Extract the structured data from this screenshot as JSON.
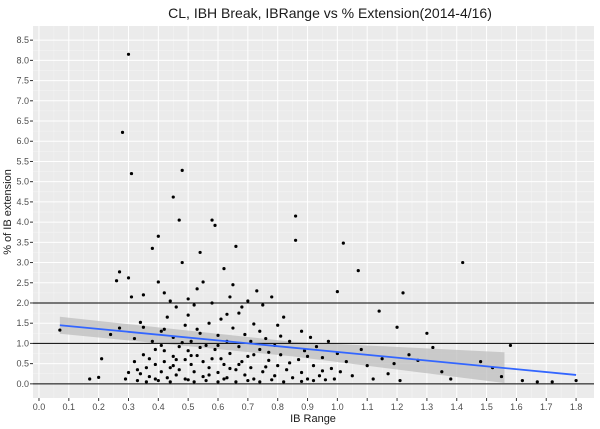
{
  "chart_data": {
    "type": "scatter",
    "title": "CL, IBH Break, IBRange vs % Extension(2014-4/16)",
    "xlabel": "IB Range",
    "ylabel": "% of IB extension",
    "xlim": [
      -0.02,
      1.86
    ],
    "ylim": [
      -0.35,
      8.85
    ],
    "x_ticks": [
      "0.0",
      "0.1",
      "0.2",
      "0.3",
      "0.4",
      "0.5",
      "0.6",
      "0.7",
      "0.8",
      "0.9",
      "1.0",
      "1.1",
      "1.2",
      "1.3",
      "1.4",
      "1.5",
      "1.6",
      "1.7",
      "1.8"
    ],
    "y_ticks": [
      "0.0",
      "0.5",
      "1.0",
      "1.5",
      "2.0",
      "2.5",
      "3.0",
      "3.5",
      "4.0",
      "4.5",
      "5.0",
      "5.5",
      "6.0",
      "6.5",
      "7.0",
      "7.5",
      "8.0",
      "8.5"
    ],
    "reference_lines": [
      0,
      1,
      2
    ],
    "grid": true,
    "background": "#ebebeb",
    "point_color": "#000000",
    "trend_color": "#3366ff",
    "ribbon_color": "#bdbdbd",
    "trend": {
      "x": [
        0.07,
        1.8
      ],
      "y": [
        1.45,
        0.22
      ],
      "ribbon_upper": [
        1.66,
        1.04,
        0.78
      ],
      "ribbon_lower": [
        1.24,
        0.68,
        0.02
      ],
      "ribbon_x": [
        0.07,
        0.85,
        1.56
      ]
    },
    "points": [
      [
        0.07,
        1.33
      ],
      [
        0.17,
        0.12
      ],
      [
        0.2,
        0.16
      ],
      [
        0.21,
        0.62
      ],
      [
        0.24,
        1.22
      ],
      [
        0.26,
        2.55
      ],
      [
        0.27,
        2.77
      ],
      [
        0.28,
        6.22
      ],
      [
        0.27,
        1.38
      ],
      [
        0.29,
        0.12
      ],
      [
        0.3,
        8.15
      ],
      [
        0.31,
        5.2
      ],
      [
        0.3,
        2.62
      ],
      [
        0.31,
        2.15
      ],
      [
        0.3,
        0.28
      ],
      [
        0.32,
        1.12
      ],
      [
        0.32,
        0.55
      ],
      [
        0.33,
        0.35
      ],
      [
        0.34,
        1.52
      ],
      [
        0.34,
        0.25
      ],
      [
        0.35,
        2.2
      ],
      [
        0.35,
        1.4
      ],
      [
        0.35,
        0.72
      ],
      [
        0.36,
        0.4
      ],
      [
        0.37,
        0.62
      ],
      [
        0.37,
        0.18
      ],
      [
        0.38,
        3.35
      ],
      [
        0.38,
        1.05
      ],
      [
        0.39,
        0.48
      ],
      [
        0.39,
        0.12
      ],
      [
        0.4,
        3.65
      ],
      [
        0.4,
        2.52
      ],
      [
        0.41,
        1.3
      ],
      [
        0.41,
        0.95
      ],
      [
        0.41,
        0.3
      ],
      [
        0.42,
        2.25
      ],
      [
        0.42,
        0.82
      ],
      [
        0.42,
        0.55
      ],
      [
        0.43,
        0.15
      ],
      [
        0.43,
        1.65
      ],
      [
        0.44,
        0.4
      ],
      [
        0.44,
        2.05
      ],
      [
        0.45,
        4.62
      ],
      [
        0.45,
        1.15
      ],
      [
        0.45,
        0.68
      ],
      [
        0.46,
        0.22
      ],
      [
        0.46,
        1.9
      ],
      [
        0.47,
        4.05
      ],
      [
        0.47,
        0.92
      ],
      [
        0.47,
        0.35
      ],
      [
        0.48,
        5.28
      ],
      [
        0.48,
        3.0
      ],
      [
        0.49,
        1.45
      ],
      [
        0.49,
        0.6
      ],
      [
        0.49,
        0.12
      ],
      [
        0.5,
        1.7
      ],
      [
        0.5,
        2.1
      ],
      [
        0.5,
        0.82
      ],
      [
        0.51,
        0.48
      ],
      [
        0.51,
        1.05
      ],
      [
        0.52,
        1.95
      ],
      [
        0.52,
        0.3
      ],
      [
        0.53,
        0.7
      ],
      [
        0.53,
        2.35
      ],
      [
        0.54,
        3.25
      ],
      [
        0.54,
        1.25
      ],
      [
        0.55,
        0.55
      ],
      [
        0.55,
        2.52
      ],
      [
        0.55,
        0.18
      ],
      [
        0.56,
        0.95
      ],
      [
        0.57,
        1.5
      ],
      [
        0.57,
        0.4
      ],
      [
        0.58,
        4.05
      ],
      [
        0.58,
        2.0
      ],
      [
        0.59,
        3.92
      ],
      [
        0.59,
        0.85
      ],
      [
        0.6,
        1.2
      ],
      [
        0.6,
        0.28
      ],
      [
        0.61,
        0.62
      ],
      [
        0.61,
        1.6
      ],
      [
        0.62,
        2.85
      ],
      [
        0.62,
        0.48
      ],
      [
        0.63,
        1.05
      ],
      [
        0.63,
        0.15
      ],
      [
        0.64,
        2.15
      ],
      [
        0.64,
        0.75
      ],
      [
        0.65,
        1.38
      ],
      [
        0.65,
        2.45
      ],
      [
        0.66,
        0.35
      ],
      [
        0.66,
        3.4
      ],
      [
        0.67,
        0.92
      ],
      [
        0.67,
        1.75
      ],
      [
        0.68,
        0.55
      ],
      [
        0.69,
        0.22
      ],
      [
        0.69,
        1.22
      ],
      [
        0.7,
        2.05
      ],
      [
        0.7,
        0.68
      ],
      [
        0.71,
        0.4
      ],
      [
        0.72,
        1.48
      ],
      [
        0.72,
        0.12
      ],
      [
        0.73,
        2.3
      ],
      [
        0.74,
        0.85
      ],
      [
        0.75,
        1.95
      ],
      [
        0.75,
        0.3
      ],
      [
        0.76,
        1.12
      ],
      [
        0.77,
        0.58
      ],
      [
        0.78,
        2.15
      ],
      [
        0.79,
        0.95
      ],
      [
        0.79,
        0.2
      ],
      [
        0.8,
        1.45
      ],
      [
        0.8,
        0.45
      ],
      [
        0.81,
        0.72
      ],
      [
        0.82,
        1.65
      ],
      [
        0.83,
        0.35
      ],
      [
        0.84,
        1.05
      ],
      [
        0.85,
        0.15
      ],
      [
        0.86,
        4.15
      ],
      [
        0.86,
        3.55
      ],
      [
        0.87,
        0.6
      ],
      [
        0.88,
        1.3
      ],
      [
        0.88,
        0.28
      ],
      [
        0.89,
        0.82
      ],
      [
        0.9,
        0.12
      ],
      [
        0.91,
        1.15
      ],
      [
        0.92,
        0.45
      ],
      [
        0.93,
        0.92
      ],
      [
        0.94,
        0.2
      ],
      [
        0.95,
        0.65
      ],
      [
        0.96,
        0.1
      ],
      [
        0.97,
        1.05
      ],
      [
        0.98,
        0.38
      ],
      [
        0.99,
        0.12
      ],
      [
        1.0,
        2.28
      ],
      [
        1.0,
        0.75
      ],
      [
        1.01,
        0.3
      ],
      [
        1.02,
        3.48
      ],
      [
        1.03,
        0.55
      ],
      [
        1.05,
        0.2
      ],
      [
        1.07,
        2.8
      ],
      [
        1.08,
        0.85
      ],
      [
        1.1,
        0.45
      ],
      [
        1.12,
        0.12
      ],
      [
        1.14,
        1.8
      ],
      [
        1.15,
        0.62
      ],
      [
        1.17,
        0.25
      ],
      [
        1.19,
        0.5
      ],
      [
        1.2,
        1.4
      ],
      [
        1.21,
        0.08
      ],
      [
        1.22,
        2.25
      ],
      [
        1.24,
        0.72
      ],
      [
        1.27,
        0.58
      ],
      [
        1.3,
        1.25
      ],
      [
        1.32,
        0.9
      ],
      [
        1.35,
        0.3
      ],
      [
        1.38,
        0.12
      ],
      [
        1.42,
        3.0
      ],
      [
        1.48,
        0.55
      ],
      [
        1.52,
        0.4
      ],
      [
        1.55,
        0.18
      ],
      [
        1.58,
        0.95
      ],
      [
        1.62,
        0.08
      ],
      [
        1.67,
        0.05
      ],
      [
        1.72,
        0.05
      ],
      [
        1.8,
        0.08
      ],
      [
        0.4,
        0.08
      ],
      [
        0.44,
        0.05
      ],
      [
        0.5,
        0.1
      ],
      [
        0.52,
        0.05
      ],
      [
        0.56,
        0.08
      ],
      [
        0.6,
        0.05
      ],
      [
        0.62,
        0.12
      ],
      [
        0.66,
        0.05
      ],
      [
        0.7,
        0.08
      ],
      [
        0.74,
        0.05
      ],
      [
        0.78,
        0.1
      ],
      [
        0.82,
        0.05
      ],
      [
        0.88,
        0.06
      ],
      [
        0.92,
        0.08
      ],
      [
        0.36,
        0.05
      ],
      [
        0.33,
        0.08
      ],
      [
        0.46,
        0.6
      ],
      [
        0.48,
        1.02
      ],
      [
        0.53,
        1.35
      ],
      [
        0.57,
        0.22
      ],
      [
        0.63,
        1.72
      ],
      [
        0.68,
        1.9
      ],
      [
        0.71,
        1.05
      ],
      [
        0.74,
        1.3
      ],
      [
        0.77,
        0.78
      ],
      [
        0.81,
        1.18
      ],
      [
        0.84,
        0.52
      ],
      [
        0.9,
        0.68
      ],
      [
        0.95,
        0.32
      ],
      [
        0.39,
        0.85
      ],
      [
        0.42,
        1.35
      ],
      [
        0.45,
        0.45
      ],
      [
        0.51,
        0.7
      ],
      [
        0.54,
        0.9
      ],
      [
        0.58,
        0.62
      ],
      [
        0.6,
        0.95
      ],
      [
        0.64,
        0.38
      ],
      [
        0.67,
        0.48
      ],
      [
        0.72,
        0.72
      ],
      [
        0.76,
        0.42
      ]
    ]
  }
}
